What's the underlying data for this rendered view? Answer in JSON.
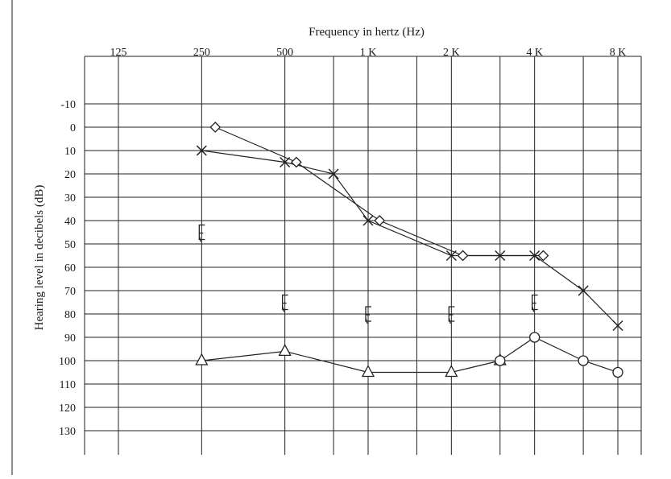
{
  "chart_data": {
    "type": "line",
    "title": "Frequency in hertz (Hz)",
    "xlabel": "Frequency in hertz (Hz)",
    "ylabel": "Hearing level in decibels (dB)",
    "x_tick_labels": [
      {
        "label": "125",
        "freq": 125
      },
      {
        "label": "250",
        "freq": 250
      },
      {
        "label": "500",
        "freq": 500
      },
      {
        "label": "1 K",
        "freq": 1000
      },
      {
        "label": "2 K",
        "freq": 2000
      },
      {
        "label": "4 K",
        "freq": 4000
      },
      {
        "label": "8 K",
        "freq": 8000
      }
    ],
    "x_grid_freqs": [
      125,
      250,
      500,
      750,
      1000,
      1500,
      2000,
      3000,
      4000,
      6000,
      8000
    ],
    "y_ticks": [
      -10,
      0,
      10,
      20,
      30,
      40,
      50,
      60,
      70,
      80,
      90,
      100,
      110,
      120,
      130
    ],
    "ylim": [
      -20,
      140
    ],
    "y_inverted": true,
    "x_scale": "log",
    "grid": true,
    "series": [
      {
        "marker": "cross",
        "connected": true,
        "points": [
          {
            "x": 250,
            "y": 10
          },
          {
            "x": 500,
            "y": 15
          },
          {
            "x": 750,
            "y": 20
          },
          {
            "x": 1000,
            "y": 40
          },
          {
            "x": 2000,
            "y": 55
          },
          {
            "x": 3000,
            "y": 55
          },
          {
            "x": 4000,
            "y": 55
          },
          {
            "x": 6000,
            "y": 70
          },
          {
            "x": 8000,
            "y": 85
          }
        ]
      },
      {
        "marker": "angle",
        "connected": true,
        "points": [
          {
            "x": 280,
            "y": 0
          },
          {
            "x": 550,
            "y": 15
          },
          {
            "x": 1100,
            "y": 40
          },
          {
            "x": 2200,
            "y": 55
          },
          {
            "x": 4300,
            "y": 55
          }
        ]
      },
      {
        "marker": "triangle",
        "connected": true,
        "points": [
          {
            "x": 250,
            "y": 100
          },
          {
            "x": 500,
            "y": 96
          },
          {
            "x": 1000,
            "y": 105
          },
          {
            "x": 2000,
            "y": 105
          },
          {
            "x": 3000,
            "y": 100
          }
        ]
      },
      {
        "marker": "circle",
        "connected": true,
        "points": [
          {
            "x": 3000,
            "y": 100
          },
          {
            "x": 4000,
            "y": 90
          },
          {
            "x": 6000,
            "y": 100
          },
          {
            "x": 8000,
            "y": 105
          }
        ]
      },
      {
        "marker": "bracket",
        "connected": false,
        "points": [
          {
            "x": 250,
            "y": 45
          },
          {
            "x": 500,
            "y": 75
          },
          {
            "x": 1000,
            "y": 80
          },
          {
            "x": 2000,
            "y": 80
          },
          {
            "x": 4000,
            "y": 75
          }
        ]
      }
    ]
  }
}
